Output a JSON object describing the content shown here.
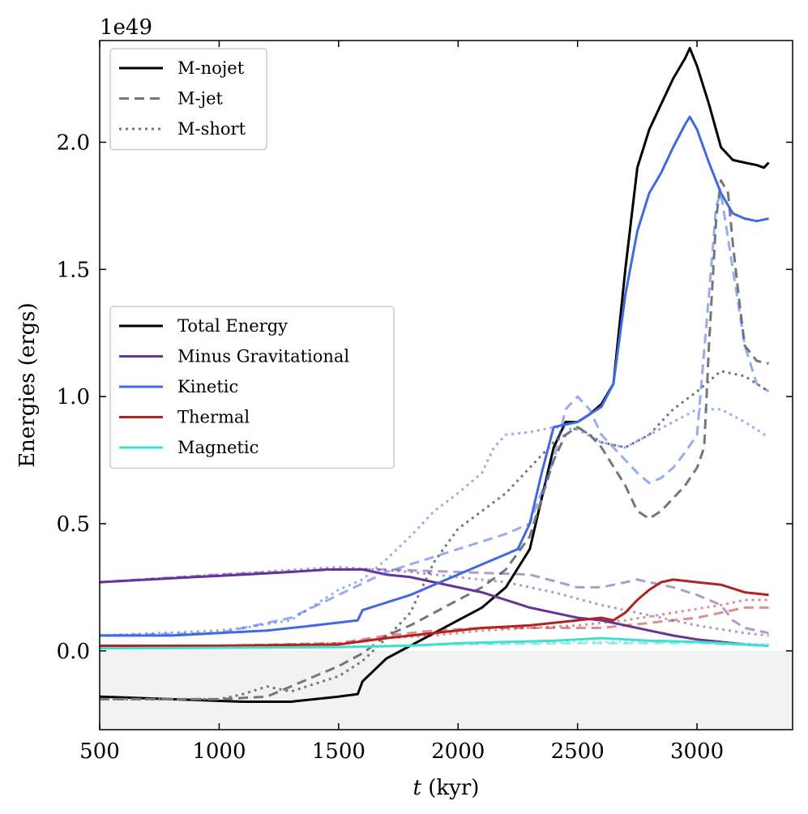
{
  "chart_data": {
    "type": "line",
    "title": "",
    "xlabel_var": "t",
    "xlabel_unit": " (kyr)",
    "ylabel": "Energies (ergs)",
    "y_offset_label": "1e49",
    "xlim": [
      500,
      3400
    ],
    "ylim": [
      -0.31,
      2.4
    ],
    "x_ticks": [
      500,
      1000,
      1500,
      2000,
      2500,
      3000
    ],
    "x_tick_labels": [
      "500",
      "1000",
      "1500",
      "2000",
      "2500",
      "3000"
    ],
    "y_ticks": [
      0.0,
      0.5,
      1.0,
      1.5,
      2.0
    ],
    "y_tick_labels": [
      "0.0",
      "0.5",
      "1.0",
      "1.5",
      "2.0"
    ],
    "grid": false,
    "negative_region_shaded": true,
    "shade_color": "#f2f2f2",
    "legend_runs": {
      "placement": "top-left",
      "entries": [
        {
          "label": "M-nojet",
          "dash": "solid",
          "color": "#000000"
        },
        {
          "label": "M-jet",
          "dash": "dashed",
          "color": "#777777"
        },
        {
          "label": "M-short",
          "dash": "dotted",
          "color": "#777777"
        }
      ]
    },
    "legend_components": {
      "placement": "center-left",
      "entries": [
        {
          "label": "Total Energy",
          "color": "#000000"
        },
        {
          "label": "Minus Gravitational",
          "color": "#663399"
        },
        {
          "label": "Kinetic",
          "color": "#4169e1"
        },
        {
          "label": "Thermal",
          "color": "#b22222"
        },
        {
          "label": "Magnetic",
          "color": "#40e0d0"
        }
      ]
    },
    "series": [
      {
        "component": "Total Energy",
        "run": "M-nojet",
        "color": "#000000",
        "dash": "solid",
        "opacity": 1.0,
        "x": [
          500,
          800,
          1100,
          1300,
          1500,
          1580,
          1600,
          1700,
          1800,
          1900,
          2000,
          2100,
          2200,
          2300,
          2350,
          2400,
          2450,
          2500,
          2550,
          2600,
          2650,
          2700,
          2750,
          2800,
          2850,
          2900,
          2950,
          2970,
          3000,
          3050,
          3100,
          3150,
          3200,
          3250,
          3280,
          3300
        ],
        "y": [
          -0.18,
          -0.19,
          -0.2,
          -0.2,
          -0.18,
          -0.17,
          -0.12,
          -0.03,
          0.02,
          0.07,
          0.12,
          0.17,
          0.25,
          0.4,
          0.6,
          0.8,
          0.9,
          0.9,
          0.93,
          0.97,
          1.05,
          1.5,
          1.9,
          2.05,
          2.15,
          2.25,
          2.33,
          2.37,
          2.3,
          2.15,
          1.98,
          1.93,
          1.92,
          1.91,
          1.9,
          1.92
        ]
      },
      {
        "component": "Total Energy",
        "run": "M-jet",
        "color": "#777777",
        "dash": "dashed",
        "opacity": 1.0,
        "x": [
          500,
          1000,
          1200,
          1300,
          1400,
          1500,
          1600,
          1700,
          1800,
          1900,
          2000,
          2100,
          2200,
          2300,
          2350,
          2400,
          2450,
          2500,
          2550,
          2600,
          2700,
          2750,
          2800,
          2850,
          2900,
          2950,
          3000,
          3030,
          3050,
          3080,
          3100,
          3130,
          3150,
          3180,
          3200,
          3250,
          3300
        ],
        "y": [
          -0.19,
          -0.19,
          -0.18,
          -0.14,
          -0.1,
          -0.06,
          -0.01,
          0.06,
          0.1,
          0.15,
          0.2,
          0.25,
          0.32,
          0.45,
          0.6,
          0.75,
          0.85,
          0.88,
          0.85,
          0.8,
          0.65,
          0.55,
          0.52,
          0.55,
          0.6,
          0.65,
          0.72,
          0.8,
          1.2,
          1.7,
          1.85,
          1.8,
          1.6,
          1.35,
          1.2,
          1.14,
          1.13
        ]
      },
      {
        "component": "Total Energy",
        "run": "M-short",
        "color": "#777777",
        "dash": "dotted",
        "opacity": 1.0,
        "x": [
          500,
          1000,
          1100,
          1200,
          1300,
          1400,
          1500,
          1600,
          1700,
          1800,
          1850,
          1900,
          2000,
          2100,
          2200,
          2300,
          2400,
          2500,
          2600,
          2700,
          2800,
          2900,
          3000,
          3100,
          3200,
          3300
        ],
        "y": [
          -0.19,
          -0.19,
          -0.17,
          -0.14,
          -0.16,
          -0.13,
          -0.1,
          -0.04,
          0.05,
          0.15,
          0.25,
          0.35,
          0.48,
          0.55,
          0.62,
          0.72,
          0.82,
          0.88,
          0.82,
          0.8,
          0.85,
          0.95,
          1.02,
          1.1,
          1.08,
          1.02
        ]
      },
      {
        "component": "Minus Gravitational",
        "run": "M-nojet",
        "color": "#663399",
        "dash": "solid",
        "opacity": 1.0,
        "x": [
          500,
          700,
          900,
          1100,
          1300,
          1450,
          1600,
          1700,
          1800,
          1900,
          2000,
          2100,
          2200,
          2300,
          2400,
          2500,
          2600,
          2700,
          2800,
          2900,
          3000,
          3100,
          3200,
          3300
        ],
        "y": [
          0.27,
          0.28,
          0.29,
          0.3,
          0.31,
          0.32,
          0.32,
          0.3,
          0.29,
          0.27,
          0.25,
          0.23,
          0.2,
          0.17,
          0.15,
          0.13,
          0.12,
          0.1,
          0.08,
          0.06,
          0.045,
          0.035,
          0.025,
          0.02
        ]
      },
      {
        "component": "Minus Gravitational",
        "run": "M-jet",
        "color": "#663399",
        "dash": "dashed",
        "opacity": 0.5,
        "x": [
          500,
          1000,
          1500,
          1700,
          2000,
          2300,
          2500,
          2600,
          2700,
          2750,
          2800,
          2900,
          3000,
          3100,
          3150,
          3200,
          3300
        ],
        "y": [
          0.27,
          0.3,
          0.32,
          0.32,
          0.31,
          0.3,
          0.25,
          0.25,
          0.27,
          0.28,
          0.27,
          0.25,
          0.22,
          0.18,
          0.12,
          0.09,
          0.07
        ]
      },
      {
        "component": "Minus Gravitational",
        "run": "M-short",
        "color": "#663399",
        "dash": "dotted",
        "opacity": 0.5,
        "x": [
          500,
          1000,
          1500,
          1800,
          2000,
          2200,
          2400,
          2600,
          2800,
          3000,
          3200,
          3300
        ],
        "y": [
          0.27,
          0.3,
          0.33,
          0.31,
          0.29,
          0.27,
          0.23,
          0.18,
          0.14,
          0.1,
          0.07,
          0.06
        ]
      },
      {
        "component": "Kinetic",
        "run": "M-nojet",
        "color": "#4169e1",
        "dash": "solid",
        "opacity": 1.0,
        "x": [
          500,
          800,
          1000,
          1200,
          1400,
          1580,
          1600,
          1700,
          1800,
          1900,
          2000,
          2100,
          2200,
          2250,
          2300,
          2350,
          2400,
          2450,
          2500,
          2550,
          2600,
          2650,
          2700,
          2750,
          2800,
          2850,
          2900,
          2950,
          2970,
          3000,
          3050,
          3100,
          3150,
          3200,
          3250,
          3300
        ],
        "y": [
          0.06,
          0.06,
          0.07,
          0.08,
          0.1,
          0.12,
          0.16,
          0.19,
          0.22,
          0.26,
          0.3,
          0.34,
          0.38,
          0.4,
          0.5,
          0.7,
          0.88,
          0.89,
          0.9,
          0.93,
          0.96,
          1.05,
          1.4,
          1.65,
          1.8,
          1.88,
          1.98,
          2.07,
          2.1,
          2.05,
          1.92,
          1.8,
          1.72,
          1.7,
          1.69,
          1.7
        ]
      },
      {
        "component": "Kinetic",
        "run": "M-jet",
        "color": "#4169e1",
        "dash": "dashed",
        "opacity": 0.55,
        "x": [
          500,
          1000,
          1300,
          1500,
          1700,
          1900,
          2000,
          2100,
          2200,
          2300,
          2400,
          2450,
          2500,
          2550,
          2600,
          2700,
          2750,
          2800,
          2850,
          2900,
          2950,
          3000,
          3050,
          3080,
          3100,
          3150,
          3200,
          3250,
          3300
        ],
        "y": [
          0.06,
          0.07,
          0.13,
          0.22,
          0.31,
          0.37,
          0.4,
          0.43,
          0.46,
          0.5,
          0.75,
          0.95,
          1.0,
          0.95,
          0.85,
          0.75,
          0.7,
          0.66,
          0.68,
          0.72,
          0.78,
          0.85,
          1.4,
          1.75,
          1.8,
          1.5,
          1.2,
          1.05,
          1.02
        ]
      },
      {
        "component": "Kinetic",
        "run": "M-short",
        "color": "#4169e1",
        "dash": "dotted",
        "opacity": 0.55,
        "x": [
          500,
          1000,
          1100,
          1300,
          1400,
          1500,
          1600,
          1700,
          1800,
          1900,
          2000,
          2100,
          2150,
          2200,
          2300,
          2400,
          2500,
          2600,
          2700,
          2800,
          2900,
          3000,
          3100,
          3200,
          3300
        ],
        "y": [
          0.06,
          0.08,
          0.09,
          0.12,
          0.18,
          0.24,
          0.28,
          0.36,
          0.45,
          0.55,
          0.62,
          0.7,
          0.8,
          0.85,
          0.86,
          0.88,
          0.87,
          0.82,
          0.8,
          0.85,
          0.9,
          0.95,
          0.95,
          0.9,
          0.84
        ]
      },
      {
        "component": "Thermal",
        "run": "M-nojet",
        "color": "#b22222",
        "dash": "solid",
        "opacity": 1.0,
        "x": [
          500,
          1000,
          1500,
          1700,
          1900,
          2100,
          2300,
          2400,
          2500,
          2600,
          2650,
          2700,
          2750,
          2800,
          2850,
          2900,
          3000,
          3100,
          3200,
          3300
        ],
        "y": [
          0.02,
          0.02,
          0.025,
          0.05,
          0.07,
          0.09,
          0.1,
          0.11,
          0.12,
          0.13,
          0.12,
          0.15,
          0.2,
          0.24,
          0.27,
          0.28,
          0.27,
          0.26,
          0.23,
          0.22
        ]
      },
      {
        "component": "Thermal",
        "run": "M-jet",
        "color": "#b22222",
        "dash": "dashed",
        "opacity": 0.5,
        "x": [
          500,
          1000,
          1500,
          1700,
          1900,
          2100,
          2300,
          2500,
          2600,
          2700,
          2800,
          2900,
          3000,
          3100,
          3200,
          3300
        ],
        "y": [
          0.02,
          0.02,
          0.03,
          0.06,
          0.08,
          0.09,
          0.09,
          0.09,
          0.09,
          0.1,
          0.11,
          0.12,
          0.13,
          0.15,
          0.17,
          0.17
        ]
      },
      {
        "component": "Thermal",
        "run": "M-short",
        "color": "#b22222",
        "dash": "dotted",
        "opacity": 0.5,
        "x": [
          500,
          1000,
          1500,
          1700,
          1900,
          2100,
          2300,
          2500,
          2700,
          2900,
          3100,
          3200,
          3300
        ],
        "y": [
          0.02,
          0.02,
          0.03,
          0.05,
          0.06,
          0.08,
          0.09,
          0.1,
          0.12,
          0.15,
          0.18,
          0.2,
          0.2
        ]
      },
      {
        "component": "Magnetic",
        "run": "M-nojet",
        "color": "#40e0d0",
        "dash": "solid",
        "opacity": 1.0,
        "x": [
          500,
          1000,
          1500,
          1800,
          2000,
          2200,
          2400,
          2500,
          2600,
          2700,
          2800,
          3000,
          3200,
          3300
        ],
        "y": [
          0.01,
          0.012,
          0.015,
          0.02,
          0.03,
          0.035,
          0.04,
          0.045,
          0.05,
          0.045,
          0.04,
          0.035,
          0.025,
          0.02
        ]
      },
      {
        "component": "Magnetic",
        "run": "M-jet",
        "color": "#40e0d0",
        "dash": "dashed",
        "opacity": 0.5,
        "x": [
          500,
          1000,
          1500,
          2000,
          2500,
          3000,
          3300
        ],
        "y": [
          0.01,
          0.012,
          0.015,
          0.025,
          0.03,
          0.03,
          0.02
        ]
      },
      {
        "component": "Magnetic",
        "run": "M-short",
        "color": "#40e0d0",
        "dash": "dotted",
        "opacity": 0.5,
        "x": [
          500,
          1000,
          1500,
          2000,
          2500,
          3000,
          3300
        ],
        "y": [
          0.01,
          0.012,
          0.015,
          0.028,
          0.035,
          0.035,
          0.025
        ]
      }
    ]
  }
}
